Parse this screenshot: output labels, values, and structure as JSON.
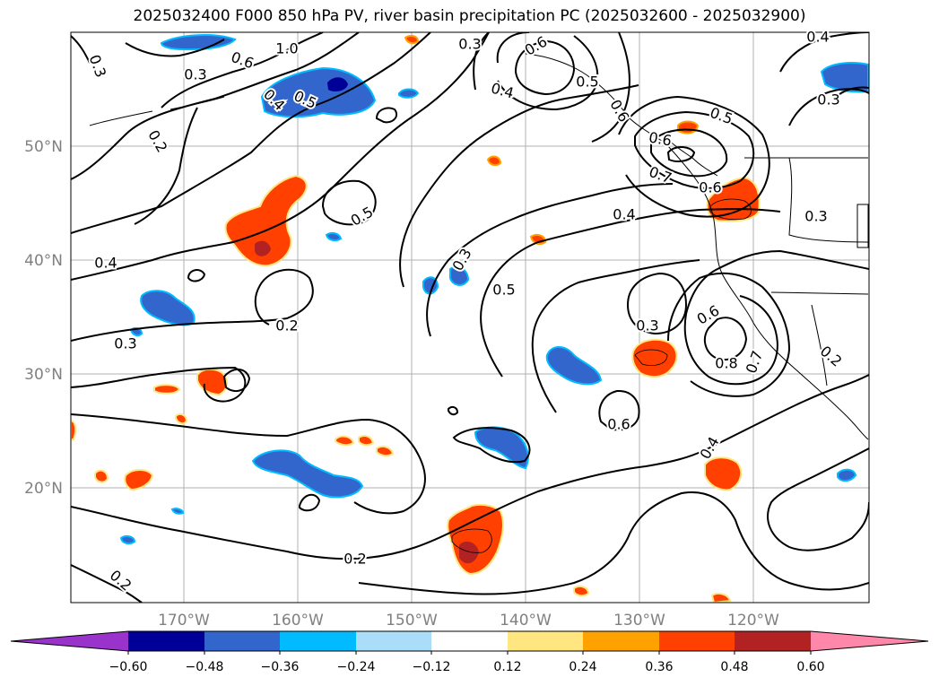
{
  "title": "2025032400 F000 850 hPa PV, river basin precipitation PC (2025032600 - 2025032900)",
  "lat_labels": [
    "50°N",
    "40°N",
    "30°N",
    "20°N"
  ],
  "lon_labels": [
    "170°W",
    "160°W",
    "150°W",
    "140°W",
    "130°W",
    "120°W"
  ],
  "colorbar": {
    "tick_labels": [
      "−0.60",
      "−0.48",
      "−0.36",
      "−0.24",
      "−0.12",
      "0.12",
      "0.24",
      "0.36",
      "0.48",
      "0.60"
    ],
    "colors": [
      "#9933cc",
      "#000099",
      "#3366cc",
      "#00bbff",
      "#aaddf8",
      "#ffffff",
      "#ffe680",
      "#ffa200",
      "#ff4000",
      "#b22222",
      "#ff88aa"
    ]
  },
  "contour_labels": [
    "1.0",
    "0.3",
    "0.6",
    "0.5",
    "0.4",
    "0.2",
    "0.3",
    "0.5",
    "0.4",
    "0.3",
    "0.2",
    "0.3",
    "0.5",
    "0.4",
    "0.6",
    "0.5",
    "0.7",
    "0.6",
    "0.4",
    "0.3",
    "0.3",
    "0.6",
    "0.8",
    "0.7",
    "0.3",
    "0.6",
    "0.4",
    "0.2",
    "0.2",
    "0.3",
    "0.4",
    "0.2",
    "0.3"
  ]
}
